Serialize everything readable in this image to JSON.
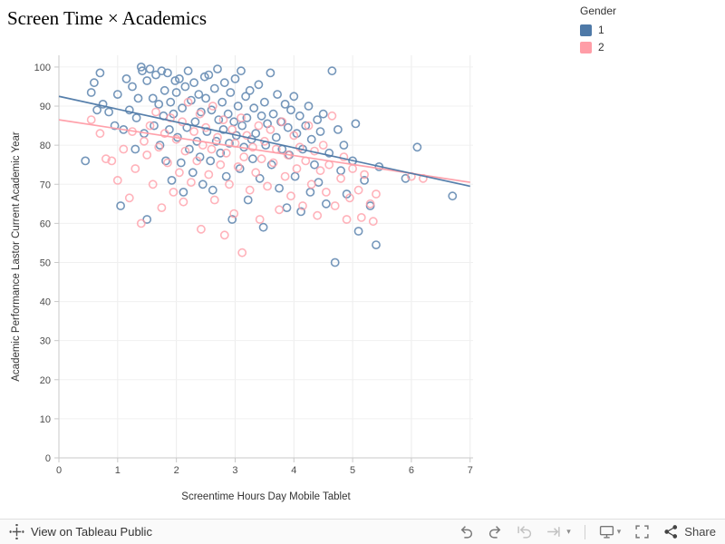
{
  "title": "Screen Time × Academics",
  "legend": {
    "title": "Gender",
    "items": [
      {
        "label": "1",
        "color": "#4e79a7"
      },
      {
        "label": "2",
        "color": "#ff9da7"
      }
    ]
  },
  "toolbar": {
    "view_label": "View on Tableau Public",
    "share_label": "Share",
    "icons": [
      "tableau-logo",
      "undo",
      "redo",
      "replay",
      "forward",
      "dropdown-caret",
      "display-download",
      "fullscreen",
      "share"
    ]
  },
  "chart_data": {
    "type": "scatter",
    "title": "Screen Time × Academics",
    "xlabel": "Screentime Hours Day Mobile Tablet",
    "ylabel": "Academic Performance Lastor Current Academic Year",
    "xlim": [
      0,
      7.05
    ],
    "ylim": [
      0,
      103
    ],
    "x_ticks": [
      0,
      1,
      2,
      3,
      4,
      5,
      6,
      7
    ],
    "y_ticks": [
      0,
      10,
      20,
      30,
      40,
      50,
      60,
      70,
      80,
      90,
      100
    ],
    "grid": true,
    "legend_position": "top-right",
    "series": [
      {
        "name": "1",
        "color": "#4e79a7",
        "trend": {
          "x": [
            0,
            7
          ],
          "y": [
            92.5,
            69.5
          ]
        },
        "points": [
          [
            0.45,
            76
          ],
          [
            0.55,
            93.5
          ],
          [
            0.6,
            96
          ],
          [
            0.65,
            89
          ],
          [
            0.7,
            98.5
          ],
          [
            0.75,
            90.5
          ],
          [
            0.85,
            88.5
          ],
          [
            0.95,
            85
          ],
          [
            1.0,
            93
          ],
          [
            1.05,
            64.5
          ],
          [
            1.1,
            84
          ],
          [
            1.15,
            97
          ],
          [
            1.2,
            89
          ],
          [
            1.25,
            95
          ],
          [
            1.3,
            79
          ],
          [
            1.32,
            87
          ],
          [
            1.35,
            92
          ],
          [
            1.4,
            100
          ],
          [
            1.42,
            99
          ],
          [
            1.45,
            83
          ],
          [
            1.5,
            96.5
          ],
          [
            1.5,
            61
          ],
          [
            1.55,
            99.5
          ],
          [
            1.6,
            92
          ],
          [
            1.62,
            85
          ],
          [
            1.65,
            98
          ],
          [
            1.7,
            90.5
          ],
          [
            1.72,
            80
          ],
          [
            1.75,
            99
          ],
          [
            1.78,
            87.5
          ],
          [
            1.8,
            94
          ],
          [
            1.82,
            76
          ],
          [
            1.85,
            98.5
          ],
          [
            1.88,
            84
          ],
          [
            1.9,
            91
          ],
          [
            1.92,
            71
          ],
          [
            1.95,
            88
          ],
          [
            1.98,
            96.5
          ],
          [
            2.0,
            93.5
          ],
          [
            2.02,
            82
          ],
          [
            2.05,
            97
          ],
          [
            2.08,
            75.5
          ],
          [
            2.1,
            89.5
          ],
          [
            2.12,
            68
          ],
          [
            2.15,
            95
          ],
          [
            2.18,
            84.5
          ],
          [
            2.2,
            99
          ],
          [
            2.22,
            79
          ],
          [
            2.25,
            91.5
          ],
          [
            2.28,
            73
          ],
          [
            2.3,
            96
          ],
          [
            2.32,
            86
          ],
          [
            2.35,
            81
          ],
          [
            2.38,
            93
          ],
          [
            2.4,
            77
          ],
          [
            2.42,
            88.5
          ],
          [
            2.45,
            70
          ],
          [
            2.48,
            97.5
          ],
          [
            2.5,
            92
          ],
          [
            2.52,
            83.5
          ],
          [
            2.55,
            98
          ],
          [
            2.58,
            76
          ],
          [
            2.6,
            89
          ],
          [
            2.62,
            68.5
          ],
          [
            2.65,
            94.5
          ],
          [
            2.68,
            81
          ],
          [
            2.7,
            99.5
          ],
          [
            2.72,
            86.5
          ],
          [
            2.75,
            78
          ],
          [
            2.78,
            91
          ],
          [
            2.8,
            84
          ],
          [
            2.82,
            96
          ],
          [
            2.85,
            72
          ],
          [
            2.88,
            88
          ],
          [
            2.9,
            80.5
          ],
          [
            2.92,
            93.5
          ],
          [
            2.95,
            61
          ],
          [
            2.98,
            86
          ],
          [
            3.0,
            97
          ],
          [
            3.02,
            82.5
          ],
          [
            3.05,
            90
          ],
          [
            3.08,
            74
          ],
          [
            3.1,
            99
          ],
          [
            3.12,
            85
          ],
          [
            3.15,
            79.5
          ],
          [
            3.18,
            92.5
          ],
          [
            3.2,
            87
          ],
          [
            3.22,
            66
          ],
          [
            3.25,
            94
          ],
          [
            3.28,
            81.5
          ],
          [
            3.3,
            76.5
          ],
          [
            3.32,
            89.5
          ],
          [
            3.35,
            83
          ],
          [
            3.4,
            95.5
          ],
          [
            3.42,
            71.5
          ],
          [
            3.45,
            87.5
          ],
          [
            3.48,
            59
          ],
          [
            3.5,
            91
          ],
          [
            3.52,
            80
          ],
          [
            3.55,
            85.5
          ],
          [
            3.6,
            98.5
          ],
          [
            3.62,
            75
          ],
          [
            3.65,
            88
          ],
          [
            3.7,
            82
          ],
          [
            3.72,
            93
          ],
          [
            3.75,
            69
          ],
          [
            3.78,
            86
          ],
          [
            3.8,
            79
          ],
          [
            3.85,
            90.5
          ],
          [
            3.88,
            64
          ],
          [
            3.9,
            84.5
          ],
          [
            3.92,
            77.5
          ],
          [
            3.95,
            89
          ],
          [
            4.0,
            92.5
          ],
          [
            4.02,
            72
          ],
          [
            4.05,
            83
          ],
          [
            4.1,
            87.5
          ],
          [
            4.12,
            63
          ],
          [
            4.15,
            79
          ],
          [
            4.2,
            85
          ],
          [
            4.25,
            90
          ],
          [
            4.28,
            68
          ],
          [
            4.3,
            81.5
          ],
          [
            4.35,
            75
          ],
          [
            4.4,
            86.5
          ],
          [
            4.42,
            70.5
          ],
          [
            4.45,
            83.5
          ],
          [
            4.5,
            88
          ],
          [
            4.55,
            65
          ],
          [
            4.6,
            78
          ],
          [
            4.65,
            99
          ],
          [
            4.7,
            50
          ],
          [
            4.75,
            84
          ],
          [
            4.8,
            73.5
          ],
          [
            4.85,
            80
          ],
          [
            4.9,
            67.5
          ],
          [
            5.0,
            76
          ],
          [
            5.05,
            85.5
          ],
          [
            5.1,
            58
          ],
          [
            5.2,
            71
          ],
          [
            5.3,
            64.5
          ],
          [
            5.4,
            54.5
          ],
          [
            5.45,
            74.5
          ],
          [
            5.9,
            71.5
          ],
          [
            6.1,
            79.5
          ],
          [
            6.7,
            67
          ]
        ]
      },
      {
        "name": "2",
        "color": "#ff9da7",
        "trend": {
          "x": [
            0,
            7
          ],
          "y": [
            86.5,
            70.5
          ]
        },
        "points": [
          [
            0.55,
            86.5
          ],
          [
            0.7,
            83
          ],
          [
            0.8,
            76.5
          ],
          [
            0.9,
            76
          ],
          [
            1.0,
            71
          ],
          [
            1.1,
            79
          ],
          [
            1.2,
            66.5
          ],
          [
            1.25,
            83.5
          ],
          [
            1.3,
            74
          ],
          [
            1.4,
            60
          ],
          [
            1.45,
            81
          ],
          [
            1.5,
            77.5
          ],
          [
            1.55,
            85
          ],
          [
            1.6,
            70
          ],
          [
            1.65,
            88.5
          ],
          [
            1.7,
            79.5
          ],
          [
            1.75,
            64
          ],
          [
            1.8,
            83
          ],
          [
            1.85,
            75.5
          ],
          [
            1.9,
            87
          ],
          [
            1.95,
            68
          ],
          [
            2.0,
            81.5
          ],
          [
            2.05,
            73
          ],
          [
            2.1,
            86
          ],
          [
            2.12,
            65.5
          ],
          [
            2.15,
            78.5
          ],
          [
            2.2,
            91
          ],
          [
            2.25,
            70.5
          ],
          [
            2.3,
            83.5
          ],
          [
            2.35,
            76
          ],
          [
            2.4,
            88
          ],
          [
            2.42,
            58.5
          ],
          [
            2.45,
            80
          ],
          [
            2.5,
            84.5
          ],
          [
            2.55,
            72.5
          ],
          [
            2.6,
            79
          ],
          [
            2.62,
            90
          ],
          [
            2.65,
            66
          ],
          [
            2.7,
            82
          ],
          [
            2.75,
            75
          ],
          [
            2.8,
            86.5
          ],
          [
            2.82,
            57
          ],
          [
            2.85,
            78
          ],
          [
            2.9,
            70
          ],
          [
            2.95,
            84
          ],
          [
            2.98,
            62.5
          ],
          [
            3.0,
            80.5
          ],
          [
            3.05,
            74.5
          ],
          [
            3.1,
            87
          ],
          [
            3.12,
            52.5
          ],
          [
            3.15,
            77
          ],
          [
            3.2,
            82.5
          ],
          [
            3.25,
            68.5
          ],
          [
            3.3,
            79.5
          ],
          [
            3.35,
            73
          ],
          [
            3.4,
            85
          ],
          [
            3.42,
            61
          ],
          [
            3.45,
            76.5
          ],
          [
            3.5,
            81
          ],
          [
            3.55,
            69.5
          ],
          [
            3.6,
            84
          ],
          [
            3.65,
            75.5
          ],
          [
            3.7,
            79
          ],
          [
            3.75,
            63.5
          ],
          [
            3.8,
            86
          ],
          [
            3.85,
            72
          ],
          [
            3.9,
            77.5
          ],
          [
            3.95,
            67
          ],
          [
            4.0,
            82.5
          ],
          [
            4.05,
            74
          ],
          [
            4.1,
            79.5
          ],
          [
            4.15,
            64.5
          ],
          [
            4.2,
            76
          ],
          [
            4.25,
            85
          ],
          [
            4.3,
            70
          ],
          [
            4.35,
            78.5
          ],
          [
            4.4,
            62
          ],
          [
            4.45,
            73.5
          ],
          [
            4.5,
            80
          ],
          [
            4.55,
            68
          ],
          [
            4.6,
            75
          ],
          [
            4.65,
            87.5
          ],
          [
            4.7,
            64.5
          ],
          [
            4.8,
            71.5
          ],
          [
            4.85,
            77
          ],
          [
            4.9,
            61
          ],
          [
            4.95,
            66.5
          ],
          [
            5.0,
            74
          ],
          [
            5.1,
            68.5
          ],
          [
            5.15,
            61.5
          ],
          [
            5.2,
            72.5
          ],
          [
            5.3,
            65
          ],
          [
            5.35,
            60.5
          ],
          [
            5.4,
            67.5
          ],
          [
            6.0,
            72
          ],
          [
            6.2,
            71.5
          ]
        ]
      }
    ]
  }
}
